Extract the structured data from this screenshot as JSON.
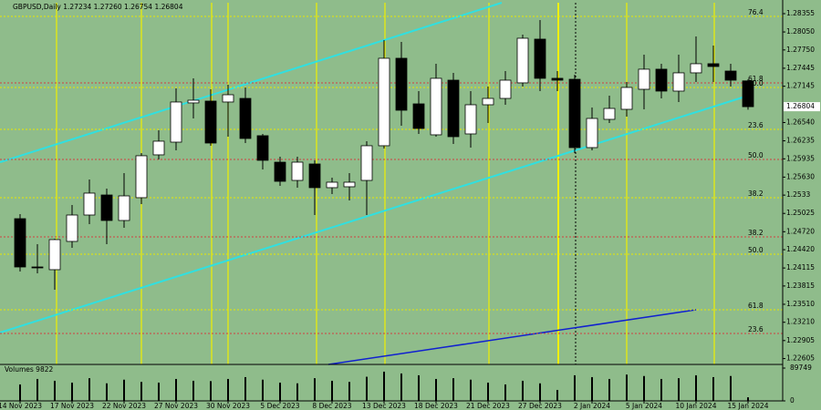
{
  "chart_data": {
    "type": "candlestick",
    "title": "GBPUSD,Daily  1.27234 1.27260 1.26754 1.26804",
    "categories": [
      "14 Nov 2023",
      null,
      null,
      "17 Nov 2023",
      null,
      null,
      "22 Nov 2023",
      null,
      null,
      "27 Nov 2023",
      null,
      null,
      "30 Nov 2023",
      null,
      null,
      "5 Dec 2023",
      null,
      null,
      "8 Dec 2023",
      null,
      null,
      "13 Dec 2023",
      null,
      null,
      "18 Dec 2023",
      null,
      null,
      "21 Dec 2023",
      null,
      null,
      "27 Dec 2023",
      null,
      null,
      "2 Jan 2024",
      null,
      null,
      "5 Jan 2024",
      null,
      null,
      "10 Jan 2024",
      null,
      null,
      "15 Jan 2024"
    ],
    "open": [
      1.24937,
      1.24132,
      1.24087,
      1.24558,
      1.24998,
      1.25332,
      1.24907,
      1.25287,
      1.26001,
      1.26213,
      1.26867,
      1.26897,
      1.26882,
      1.26942,
      1.2632,
      1.25879,
      1.25575,
      1.25849,
      1.25454,
      1.25469,
      1.25575,
      1.26153,
      1.27611,
      1.26851,
      1.26335,
      1.27246,
      1.2635,
      1.26836,
      1.26942,
      1.27201,
      1.2793,
      1.27277,
      1.27261,
      1.26122,
      1.26593,
      1.2676,
      1.27094,
      1.27429,
      1.27064,
      1.27368,
      1.2752,
      1.27398,
      1.27234
    ],
    "high": [
      1.25013,
      1.24512,
      1.24603,
      1.25165,
      1.25591,
      1.25439,
      1.25697,
      1.26031,
      1.26411,
      1.2711,
      1.27277,
      1.27094,
      1.2717,
      1.27125,
      1.2635,
      1.2597,
      1.2597,
      1.2591,
      1.25621,
      1.25697,
      1.26229,
      1.27915,
      1.27884,
      1.27064,
      1.2752,
      1.27368,
      1.27064,
      1.2714,
      1.27398,
      1.28006,
      1.28249,
      1.27398,
      1.27337,
      1.26791,
      1.26988,
      1.27216,
      1.27672,
      1.2752,
      1.27672,
      1.27975,
      1.27823,
      1.2752,
      1.2726
    ],
    "low": [
      1.24056,
      1.24026,
      1.23753,
      1.24451,
      1.24846,
      1.24512,
      1.24785,
      1.2518,
      1.25925,
      1.26077,
      1.26608,
      1.26153,
      1.26304,
      1.26198,
      1.25758,
      1.25484,
      1.25454,
      1.24998,
      1.25348,
      1.25241,
      1.24998,
      1.26107,
      1.26487,
      1.2635,
      1.26304,
      1.26183,
      1.26122,
      1.26532,
      1.26836,
      1.2714,
      1.27064,
      1.27064,
      1.26031,
      1.26077,
      1.26532,
      1.26639,
      1.2676,
      1.26942,
      1.26882,
      1.27216,
      1.27216,
      1.2714,
      1.26754
    ],
    "close": [
      1.24132,
      1.24117,
      1.24588,
      1.24998,
      1.25363,
      1.24907,
      1.25317,
      1.25986,
      1.26229,
      1.26882,
      1.26912,
      1.26198,
      1.27003,
      1.26274,
      1.2591,
      1.2556,
      1.25879,
      1.25454,
      1.25545,
      1.25545,
      1.26153,
      1.27611,
      1.26745,
      1.26441,
      1.27277,
      1.26304,
      1.26836,
      1.26942,
      1.27246,
      1.27945,
      1.27277,
      1.27246,
      1.26122,
      1.26608,
      1.26775,
      1.27125,
      1.27429,
      1.27064,
      1.27368,
      1.2752,
      1.27474,
      1.27246,
      1.26804
    ],
    "up_color": "#ffffff",
    "down_color": "#000000",
    "ylim": [
      1.22507,
      1.28537
    ],
    "yticks": [
      1.28355,
      {
        "value": 1.2805,
        "label": "1.28050"
      },
      {
        "value": 1.2775,
        "label": "1.27750"
      },
      1.27445,
      1.27145,
      {
        "value": 1.2654,
        "label": "1.26540"
      },
      1.26235,
      1.25935,
      {
        "value": 1.2563,
        "label": "1.25630"
      },
      1.2533,
      1.25025,
      {
        "value": 1.2472,
        "label": "1.24720"
      },
      {
        "value": 1.2442,
        "label": "1.24420"
      },
      1.24115,
      1.23815,
      {
        "value": 1.2351,
        "label": "1.23510"
      },
      {
        "value": 1.2321,
        "label": "1.23210"
      },
      1.22905,
      1.22605
    ],
    "last_price": 1.26804,
    "fib_levels": [
      {
        "value": 1.2831,
        "label": "76.4",
        "color": "#e8e800"
      },
      {
        "value": 1.27201,
        "label": "61.8",
        "color": "#d04040"
      },
      {
        "value": 1.27125,
        "label": "50.0",
        "color": "#e8e800"
      },
      {
        "value": 1.26426,
        "label": "23.6",
        "color": "#e8e800"
      },
      {
        "value": 1.25925,
        "label": "50.0",
        "color": "#d04040"
      },
      {
        "value": 1.25287,
        "label": "38.2",
        "color": "#e8e800"
      },
      {
        "value": 1.24634,
        "label": "38.2",
        "color": "#d04040"
      },
      {
        "value": 1.24345,
        "label": "50.0",
        "color": "#e8e800"
      },
      {
        "value": 1.23418,
        "label": "61.8",
        "color": "#e8e800"
      },
      {
        "value": 1.23023,
        "label": "23.6",
        "color": "#d04040"
      }
    ],
    "volume": {
      "title": "Volumes 9822",
      "values": [
        45000,
        60000,
        55000,
        50000,
        62000,
        48000,
        58000,
        52000,
        50000,
        60000,
        55000,
        54000,
        60000,
        65000,
        58000,
        50000,
        48000,
        62000,
        55000,
        52000,
        66000,
        80000,
        75000,
        70000,
        60000,
        62000,
        58000,
        50000,
        45000,
        55000,
        48000,
        30000,
        70000,
        65000,
        60000,
        72000,
        68000,
        60000,
        62000,
        70000,
        65000,
        68000,
        9822
      ],
      "ylim": [
        0,
        89749
      ],
      "yticks": [
        89749,
        0
      ]
    }
  }
}
